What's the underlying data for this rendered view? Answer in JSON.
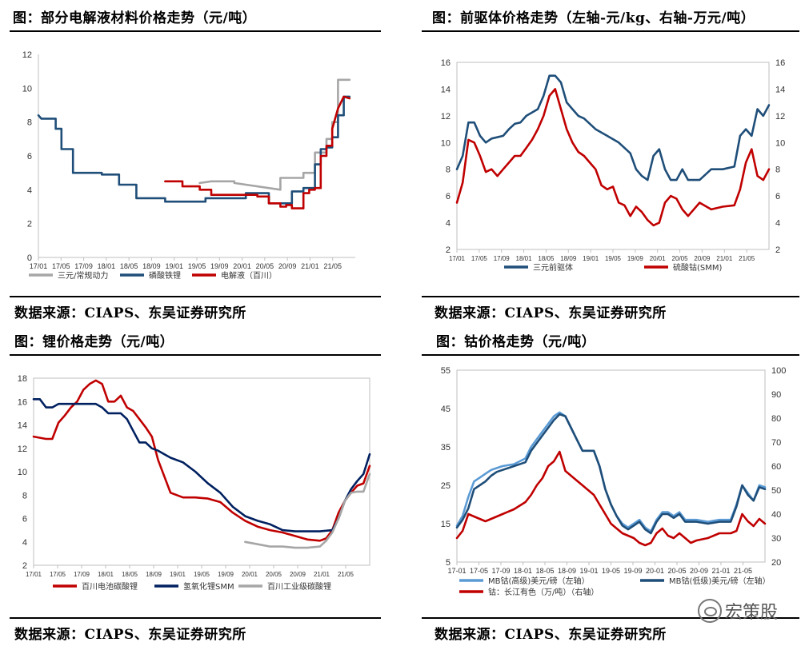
{
  "panels": [
    {
      "title": "图：部分电解液材料价格走势（元/吨）",
      "source": "数据来源：CIAPS、东吴证券研究所"
    },
    {
      "title": "图：前驱体价格走势（左轴-元/kg、右轴-万元/吨）",
      "source": "数据来源：CIAPS、东吴证券研究所"
    },
    {
      "title": "图：锂价格走势（元/吨）",
      "source": "数据来源：CIAPS、东吴证券研究所"
    },
    {
      "title": "图：钴价格走势（元/吨）",
      "source": "数据来源：CIAPS、东吴证券研究所"
    }
  ],
  "watermark": "宏策股",
  "chart_data": [
    {
      "type": "line",
      "ylim": [
        0,
        12
      ],
      "yticks": [
        0,
        2,
        4,
        6,
        8,
        10,
        12
      ],
      "xticks": [
        "17/01",
        "17/05",
        "17/09",
        "18/01",
        "18/05",
        "18/09",
        "19/01",
        "19/05",
        "19/09",
        "20/01",
        "20/05",
        "20/09",
        "21/01",
        "21/05"
      ],
      "xrange": [
        0,
        55
      ],
      "series": [
        {
          "name": "三元/常规动力",
          "color": "#a6a6a6",
          "x": [
            28,
            30,
            34,
            34,
            42,
            42,
            46,
            46,
            48,
            48,
            50,
            50,
            51,
            51,
            52,
            52,
            54
          ],
          "y": [
            4.4,
            4.5,
            4.5,
            4.4,
            4.0,
            4.7,
            4.7,
            5.0,
            5.0,
            6.2,
            6.2,
            7.0,
            7.0,
            8.0,
            8.0,
            10.5,
            10.5
          ]
        },
        {
          "name": "磷酸铁锂",
          "color": "#1f4e79",
          "x": [
            0,
            0.5,
            3,
            3,
            4,
            4,
            6,
            6,
            11,
            11,
            14,
            14,
            17,
            17,
            22,
            22,
            29,
            29,
            36,
            36,
            40,
            40,
            42,
            42,
            44,
            44,
            46,
            46,
            48,
            48,
            49,
            49,
            50,
            50,
            51,
            51,
            52,
            52,
            53,
            53,
            54
          ],
          "y": [
            8.4,
            8.2,
            8.2,
            7.6,
            7.6,
            6.4,
            6.4,
            5.0,
            5.0,
            4.9,
            4.9,
            4.3,
            4.3,
            3.5,
            3.5,
            3.3,
            3.3,
            3.5,
            3.5,
            3.8,
            3.8,
            3.2,
            3.2,
            3.2,
            3.2,
            3.9,
            3.9,
            4.1,
            4.1,
            5.5,
            5.5,
            6.4,
            6.4,
            6.5,
            6.5,
            7.1,
            7.1,
            8.4,
            8.4,
            9.5,
            9.5
          ]
        },
        {
          "name": "电解液（百川）",
          "color": "#c00000",
          "x": [
            22,
            25,
            25,
            28,
            28,
            30,
            30,
            38,
            38,
            40,
            40,
            42,
            42,
            43,
            43,
            44,
            44,
            46,
            46,
            47,
            47,
            48,
            48,
            49,
            49,
            50,
            50,
            51,
            51,
            52,
            53,
            54
          ],
          "y": [
            4.5,
            4.5,
            4.2,
            4.2,
            4.0,
            4.0,
            3.7,
            3.7,
            3.6,
            3.6,
            3.2,
            3.2,
            3.0,
            3.0,
            3.1,
            3.1,
            2.9,
            2.9,
            3.8,
            3.8,
            4.0,
            4.0,
            4.1,
            4.1,
            6.0,
            6.0,
            6.6,
            6.6,
            7.6,
            8.8,
            9.5,
            9.4
          ]
        }
      ]
    },
    {
      "type": "line",
      "ylim": [
        2,
        16
      ],
      "yticks": [
        2,
        4,
        6,
        8,
        10,
        12,
        14,
        16
      ],
      "ylim_right": [
        2,
        16
      ],
      "yticks_right": [
        2,
        4,
        6,
        8,
        10,
        12,
        14,
        16
      ],
      "xticks": [
        "17/01",
        "17/05",
        "17/09",
        "18/01",
        "18/05",
        "18/09",
        "19/01",
        "19/05",
        "19/09",
        "20/01",
        "20/05",
        "20/09",
        "21/01",
        "21/05"
      ],
      "xrange": [
        0,
        54
      ],
      "series": [
        {
          "name": "三元前驱体",
          "color": "#1f4e79",
          "axis": "left",
          "x": [
            0,
            1,
            2,
            3,
            4,
            5,
            6,
            8,
            9,
            10,
            11,
            12,
            14,
            15,
            16,
            17,
            18,
            19,
            20,
            21,
            22,
            24,
            26,
            28,
            30,
            31,
            32,
            33,
            34,
            35,
            36,
            37,
            38,
            39,
            40,
            42,
            44,
            46,
            48,
            49,
            50,
            51,
            52,
            53,
            54
          ],
          "y": [
            8,
            9,
            11.5,
            11.5,
            10.5,
            10,
            10.3,
            10.5,
            11,
            11.4,
            11.5,
            12,
            12.5,
            13.5,
            15,
            15,
            14.5,
            13,
            12.5,
            12,
            11.8,
            11,
            10.5,
            10,
            9.2,
            8,
            7.5,
            7.2,
            9,
            9.5,
            8,
            7.2,
            7.2,
            8,
            7.2,
            7.2,
            8,
            8,
            8.2,
            10.5,
            11,
            10.5,
            12.5,
            12,
            12.8
          ]
        },
        {
          "name": "硫酸钴(SMM)",
          "color": "#c00000",
          "axis": "right",
          "x": [
            0,
            1,
            2,
            3,
            4,
            5,
            6,
            7,
            8,
            9,
            10,
            11,
            12,
            13,
            14,
            15,
            16,
            17,
            18,
            19,
            20,
            21,
            22,
            23,
            24,
            25,
            26,
            27,
            28,
            29,
            30,
            31,
            32,
            33,
            34,
            35,
            36,
            37,
            38,
            39,
            40,
            42,
            44,
            46,
            48,
            49,
            50,
            51,
            52,
            53,
            54
          ],
          "y": [
            5.5,
            7,
            10.2,
            10,
            9,
            7.8,
            8,
            7.5,
            8,
            8.5,
            9,
            9,
            9.6,
            10.2,
            11,
            12,
            13.5,
            14,
            12.5,
            11,
            10,
            9.3,
            9,
            8.5,
            8,
            6.8,
            6.5,
            6.7,
            5.5,
            5.3,
            4.5,
            5.2,
            4.8,
            4.2,
            3.8,
            4,
            5.5,
            6,
            5.8,
            5,
            4.5,
            5.5,
            5,
            5.2,
            5.3,
            6.5,
            8.5,
            9.5,
            7.5,
            7.2,
            8
          ]
        }
      ]
    },
    {
      "type": "line",
      "ylim": [
        2,
        18
      ],
      "yticks": [
        2,
        4,
        6,
        8,
        10,
        12,
        14,
        16,
        18
      ],
      "xticks": [
        "17/01",
        "17/05",
        "17/09",
        "18/01",
        "18/05",
        "18/09",
        "19/01",
        "19/05",
        "19/09",
        "20/01",
        "20/05",
        "20/09",
        "21/01",
        "21/05"
      ],
      "xrange": [
        0,
        54
      ],
      "series": [
        {
          "name": "百川电池碳酸锂",
          "color": "#c00000",
          "x": [
            0,
            2,
            3,
            4,
            5,
            6,
            7,
            8,
            9,
            10,
            11,
            12,
            13,
            14,
            15,
            16,
            17,
            18,
            19,
            20,
            22,
            24,
            26,
            28,
            30,
            32,
            34,
            36,
            38,
            40,
            42,
            44,
            46,
            47,
            48,
            49,
            50,
            51,
            52,
            53,
            54
          ],
          "y": [
            13,
            12.8,
            12.8,
            14.2,
            14.8,
            15.5,
            16,
            17,
            17.5,
            17.8,
            17.5,
            16,
            16,
            16.5,
            15.5,
            15.2,
            14.5,
            13.8,
            13,
            11,
            8.2,
            7.8,
            7.8,
            7.7,
            7.4,
            6.5,
            5.8,
            5.3,
            5,
            4.8,
            4.5,
            4.2,
            4.1,
            4.3,
            5,
            6.5,
            7.5,
            8.2,
            8.8,
            9,
            10.5
          ]
        },
        {
          "name": "氢氧化锂SMM",
          "color": "#002060",
          "x": [
            0,
            1,
            2,
            3,
            4,
            6,
            8,
            10,
            11,
            12,
            13,
            14,
            15,
            16,
            17,
            18,
            19,
            20,
            21,
            22,
            24,
            26,
            28,
            30,
            32,
            34,
            36,
            38,
            40,
            42,
            44,
            46,
            48,
            49,
            50,
            51,
            52,
            53,
            54
          ],
          "y": [
            16.2,
            16.2,
            15.5,
            15.5,
            15.8,
            15.8,
            15.8,
            15.8,
            15.5,
            15,
            15,
            15,
            14.5,
            13.5,
            12.5,
            12.5,
            12,
            11.8,
            11.5,
            11.2,
            10.8,
            10,
            9,
            8.2,
            7,
            6.2,
            5.8,
            5.5,
            5,
            4.9,
            4.9,
            4.9,
            5,
            6,
            7.5,
            8.5,
            9.2,
            9.8,
            11.5
          ]
        },
        {
          "name": "百川工业级碳酸锂",
          "color": "#a6a6a6",
          "x": [
            34,
            36,
            38,
            40,
            42,
            44,
            46,
            47,
            48,
            49,
            50,
            51,
            52,
            53,
            54
          ],
          "y": [
            4,
            3.8,
            3.6,
            3.6,
            3.5,
            3.5,
            3.6,
            4.1,
            4.8,
            6,
            7.5,
            8.2,
            8.3,
            8.3,
            9.8
          ]
        }
      ]
    },
    {
      "type": "line",
      "ylim": [
        5,
        55
      ],
      "yticks": [
        5,
        15,
        25,
        35,
        45,
        55
      ],
      "ylim_right": [
        20,
        100
      ],
      "yticks_right": [
        20,
        30,
        40,
        50,
        60,
        70,
        80,
        90,
        100
      ],
      "xticks": [
        "17-01",
        "17-05",
        "17-09",
        "18-01",
        "18-05",
        "18-09",
        "19-01",
        "19-05",
        "19-09",
        "20-01",
        "20-05",
        "20-09",
        "21-01",
        "21-05"
      ],
      "xrange": [
        0,
        54
      ],
      "series": [
        {
          "name": "MB钴(高级)美元/磅（左轴）",
          "color": "#5b9bd5",
          "axis": "left",
          "x": [
            0,
            1,
            2,
            3,
            4,
            5,
            6,
            7,
            8,
            10,
            12,
            13,
            14,
            15,
            16,
            17,
            18,
            19,
            20,
            21,
            22,
            24,
            25,
            26,
            27,
            28,
            29,
            30,
            31,
            32,
            33,
            34,
            35,
            36,
            37,
            38,
            39,
            40,
            42,
            44,
            46,
            48,
            49,
            50,
            51,
            52,
            53,
            54
          ],
          "y": [
            14.5,
            17,
            22,
            26,
            27,
            28,
            29,
            29.5,
            30,
            30.5,
            32,
            35,
            37,
            39,
            41,
            43,
            44,
            43,
            40,
            37,
            34,
            34,
            30,
            24,
            20,
            17,
            15,
            14,
            15,
            16,
            14,
            13,
            16,
            18,
            18,
            17,
            18,
            16,
            16,
            15.5,
            16,
            16,
            20,
            25,
            23,
            21,
            25,
            24.5
          ]
        },
        {
          "name": "MB钴(低级)美元/磅（左轴）",
          "color": "#1f4e79",
          "axis": "left",
          "x": [
            0,
            1,
            2,
            3,
            4,
            5,
            6,
            7,
            8,
            10,
            12,
            13,
            14,
            15,
            16,
            17,
            18,
            19,
            20,
            21,
            22,
            24,
            25,
            26,
            27,
            28,
            29,
            30,
            31,
            32,
            33,
            34,
            35,
            36,
            37,
            38,
            39,
            40,
            42,
            44,
            46,
            48,
            49,
            50,
            51,
            52,
            53,
            54
          ],
          "y": [
            14,
            16,
            19,
            24,
            25,
            26,
            27.5,
            28.5,
            29,
            30,
            31,
            34,
            36,
            38,
            40,
            42,
            43.5,
            43,
            40,
            37,
            34,
            34,
            30,
            24,
            20,
            17,
            14.5,
            13.5,
            14.5,
            15.5,
            13.5,
            12.5,
            15.5,
            17.5,
            17.5,
            16.5,
            17.5,
            15.5,
            15.5,
            15,
            15.5,
            15.5,
            19.5,
            25,
            22.5,
            21,
            24.5,
            24
          ]
        },
        {
          "name": "钴：长江有色（万/吨）（右轴）",
          "color": "#c00000",
          "axis": "right",
          "x": [
            0,
            1,
            2,
            3,
            4,
            5,
            6,
            8,
            10,
            12,
            13,
            14,
            15,
            16,
            17,
            18,
            19,
            20,
            21,
            22,
            23,
            24,
            25,
            26,
            27,
            28,
            29,
            30,
            31,
            32,
            33,
            34,
            35,
            36,
            37,
            38,
            39,
            40,
            41,
            42,
            44,
            46,
            48,
            49,
            50,
            51,
            52,
            53,
            54
          ],
          "y": [
            30,
            33,
            40,
            39,
            38,
            37,
            38,
            40,
            42,
            45,
            48,
            52,
            55,
            60,
            62,
            66,
            58,
            56,
            54,
            52,
            50,
            48,
            44,
            40,
            36,
            34,
            32,
            31,
            30,
            28,
            27,
            28,
            32,
            34,
            31,
            30,
            32,
            30,
            28,
            29,
            30,
            32,
            32,
            33,
            40,
            37,
            35,
            38,
            36
          ]
        }
      ]
    }
  ]
}
